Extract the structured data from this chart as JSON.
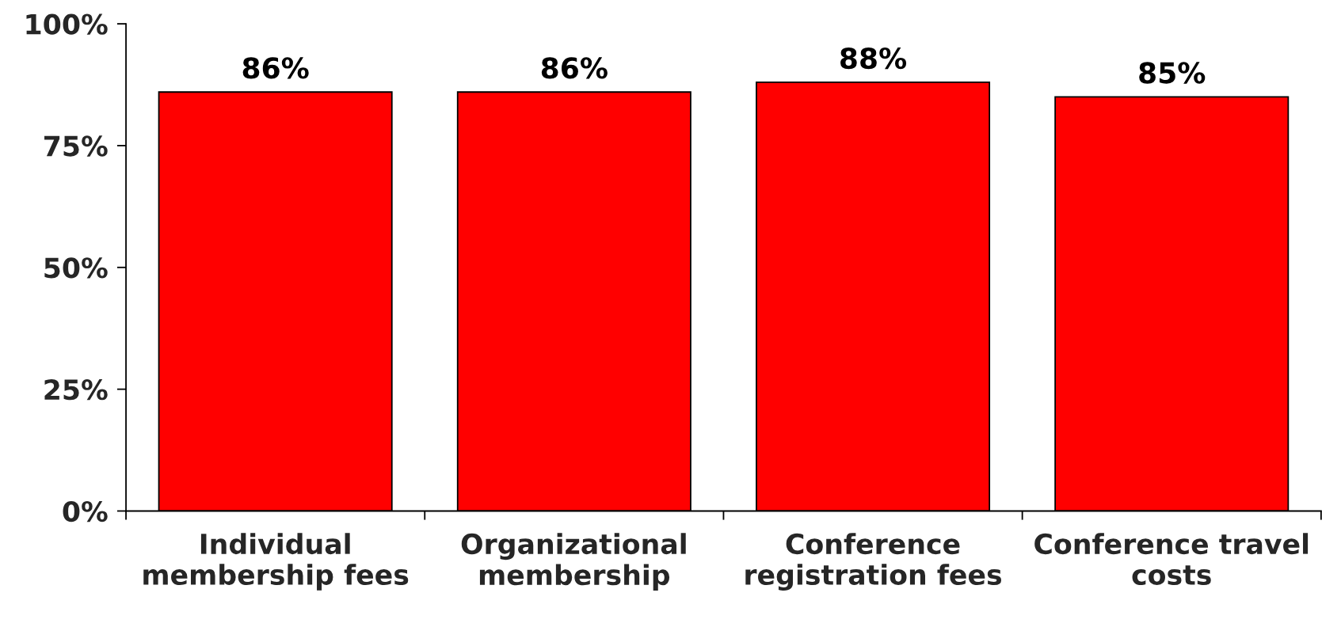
{
  "chart_data": {
    "type": "bar",
    "categories": [
      "Individual\nmembership fees",
      "Organizational\nmembership",
      "Conference\nregistration fees",
      "Conference travel\ncosts"
    ],
    "values": [
      86,
      86,
      88,
      85
    ],
    "color": "#ff0000",
    "value_labels": [
      "86%",
      "86%",
      "88%",
      "85%"
    ],
    "ylim": [
      0,
      100
    ],
    "yticks": [
      {
        "value": 0,
        "label": "0%"
      },
      {
        "value": 25,
        "label": "25%"
      },
      {
        "value": 50,
        "label": "50%"
      },
      {
        "value": 75,
        "label": "75%"
      },
      {
        "value": 100,
        "label": "100%"
      }
    ]
  }
}
